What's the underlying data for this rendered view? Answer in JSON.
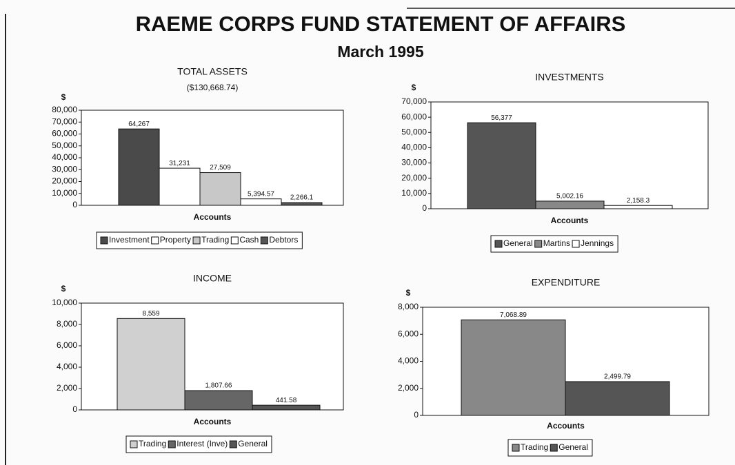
{
  "title": "RAEME CORPS FUND STATEMENT OF AFFAIRS",
  "subtitle": "March 1995",
  "chart_data": [
    {
      "type": "bar",
      "title": "TOTAL ASSETS",
      "subtitle": "($130,668.74)",
      "ylabel": "$",
      "xlabel": "Accounts",
      "ylim": [
        0,
        80000
      ],
      "yticks": [
        0,
        {
          "value": 10000,
          "label": "10,000"
        },
        {
          "value": 20000,
          "label": "20,000"
        },
        {
          "value": 30000,
          "label": "30,000"
        },
        {
          "value": 40000,
          "label": "40,000"
        },
        {
          "value": 50000,
          "label": "50,000"
        },
        {
          "value": 60000,
          "label": "60,000"
        },
        {
          "value": 70000,
          "label": "70,000"
        },
        {
          "value": 80000,
          "label": "80,000"
        }
      ],
      "series": [
        {
          "name": "Investment",
          "color": "#4a4a4a",
          "values": [
            64267
          ],
          "value_labels": [
            "64,267"
          ]
        },
        {
          "name": "Property",
          "color": "#ffffff",
          "values": [
            31231
          ],
          "value_labels": [
            "31,231"
          ]
        },
        {
          "name": "Trading",
          "color": "#c8c8c8",
          "values": [
            27509
          ],
          "value_labels": [
            "27,509"
          ]
        },
        {
          "name": "Cash",
          "color": "#ffffff",
          "values": [
            5394.57
          ],
          "value_labels": [
            "5,394.57"
          ]
        },
        {
          "name": "Debtors",
          "color": "#555555",
          "values": [
            2266.1
          ],
          "value_labels": [
            "2,266.1"
          ]
        }
      ]
    },
    {
      "type": "bar",
      "title": "INVESTMENTS",
      "ylabel": "$",
      "xlabel": "Accounts",
      "ylim": [
        0,
        70000
      ],
      "yticks": [
        0,
        {
          "value": 10000,
          "label": "10,000"
        },
        {
          "value": 20000,
          "label": "20,000"
        },
        {
          "value": 30000,
          "label": "30,000"
        },
        {
          "value": 40000,
          "label": "40,000"
        },
        {
          "value": 50000,
          "label": "50,000"
        },
        {
          "value": 60000,
          "label": "60,000"
        },
        {
          "value": 70000,
          "label": "70,000"
        }
      ],
      "series": [
        {
          "name": "General",
          "color": "#555555",
          "values": [
            56377
          ],
          "value_labels": [
            "56,377"
          ]
        },
        {
          "name": "Martins",
          "color": "#888888",
          "values": [
            5002.16
          ],
          "value_labels": [
            "5,002.16"
          ]
        },
        {
          "name": "Jennings",
          "color": "#ffffff",
          "values": [
            2158.3
          ],
          "value_labels": [
            "2,158.3"
          ]
        }
      ]
    },
    {
      "type": "bar",
      "title": "INCOME",
      "ylabel": "$",
      "xlabel": "Accounts",
      "ylim": [
        0,
        10000
      ],
      "yticks": [
        0,
        {
          "value": 2000,
          "label": "2,000"
        },
        {
          "value": 4000,
          "label": "4,000"
        },
        {
          "value": 6000,
          "label": "6,000"
        },
        {
          "value": 8000,
          "label": "8,000"
        },
        {
          "value": 10000,
          "label": "10,000"
        }
      ],
      "series": [
        {
          "name": "Trading",
          "color": "#d0d0d0",
          "values": [
            8559
          ],
          "value_labels": [
            "8,559"
          ]
        },
        {
          "name": "Interest (Inve)",
          "color": "#666666",
          "values": [
            1807.66
          ],
          "value_labels": [
            "1,807.66"
          ]
        },
        {
          "name": "General",
          "color": "#555555",
          "values": [
            441.58
          ],
          "value_labels": [
            "441.58"
          ]
        }
      ]
    },
    {
      "type": "bar",
      "title": "EXPENDITURE",
      "ylabel": "$",
      "xlabel": "Accounts",
      "ylim": [
        0,
        8000
      ],
      "yticks": [
        0,
        {
          "value": 2000,
          "label": "2,000"
        },
        {
          "value": 4000,
          "label": "4,000"
        },
        {
          "value": 6000,
          "label": "6,000"
        },
        {
          "value": 8000,
          "label": "8,000"
        }
      ],
      "series": [
        {
          "name": "Trading",
          "color": "#888888",
          "values": [
            7068.89
          ],
          "value_labels": [
            "7,068.89"
          ]
        },
        {
          "name": "General",
          "color": "#555555",
          "values": [
            2499.79
          ],
          "value_labels": [
            "2,499.79"
          ]
        }
      ]
    }
  ]
}
